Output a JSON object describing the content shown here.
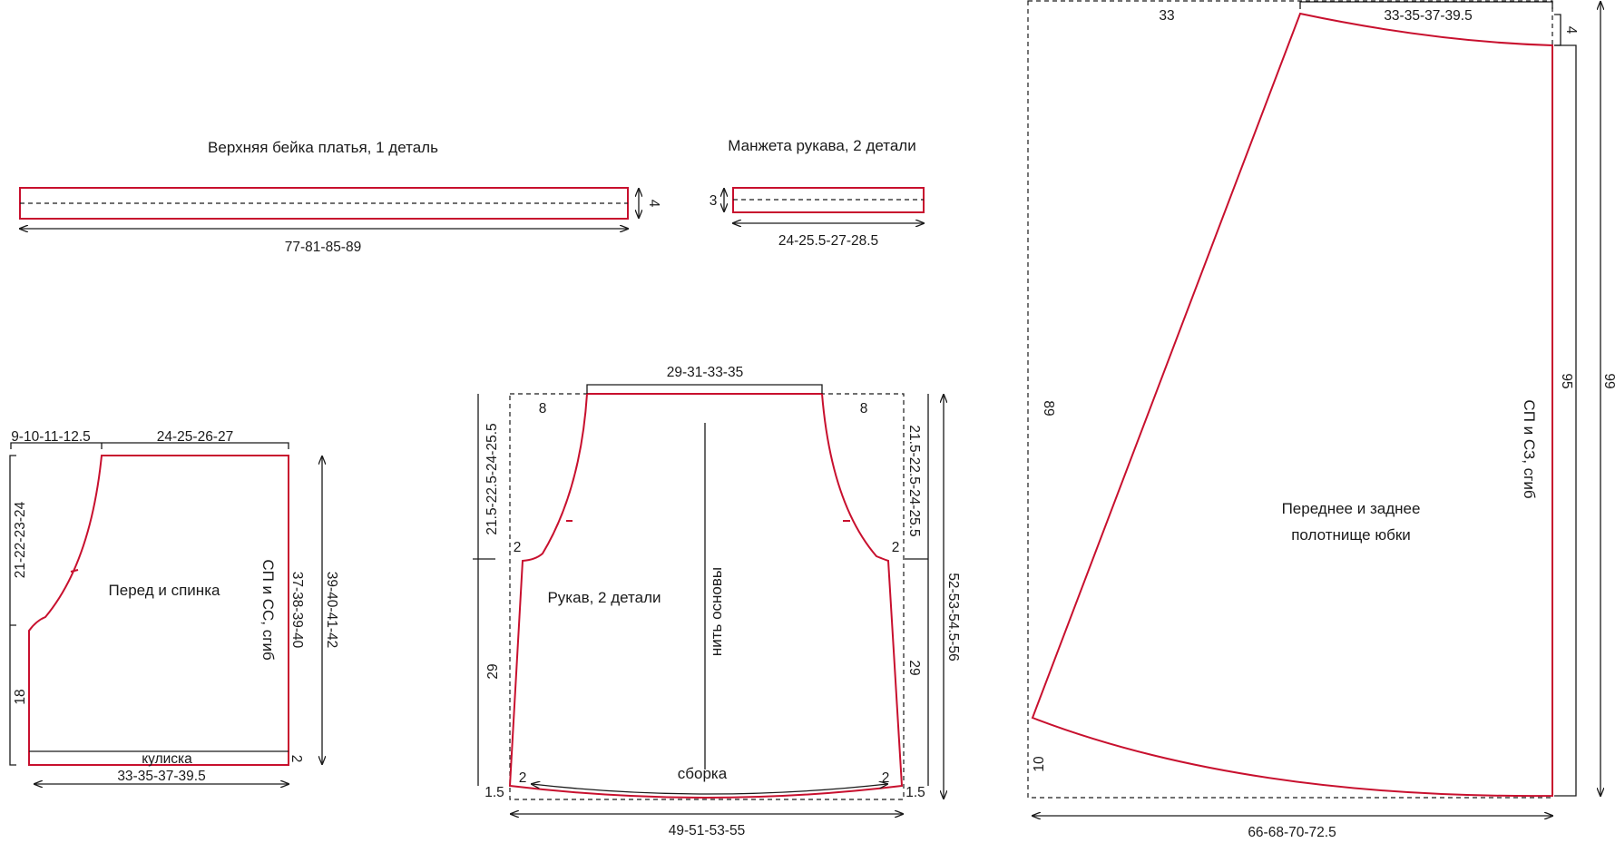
{
  "pieces": {
    "band": {
      "title": "Верхняя бейка платья, 1 деталь",
      "length": "77-81-85-89",
      "width": "4"
    },
    "cuff": {
      "title": "Манжета рукава, 2 детали",
      "length": "24-25.5-27-28.5",
      "width": "3"
    },
    "bodice": {
      "title": "Перед и спинка",
      "top_left": "9-10-11-12.5",
      "top_right": "24-25-26-27",
      "armhole_height": "21-22-23-24",
      "side_lower": "18",
      "fold": "СП и СС, сгиб",
      "fold_height": "37-38-39-40",
      "total_height": "39-40-41-42",
      "casing": "кулиска",
      "casing_width": "2",
      "bottom": "33-35-37-39.5"
    },
    "sleeve": {
      "title": "Рукав, 2 детали",
      "top": "29-31-33-35",
      "corner_left": "8",
      "corner_right": "8",
      "cap_left": "21.5-22.5-24-25.5",
      "cap_right": "21.5-22.5-24-25.5",
      "underarm_left": "2",
      "underarm_right": "2",
      "lower_left": "29",
      "lower_right": "29",
      "grain": "нить основы",
      "total_height": "52-53-54.5-56",
      "gather": "сборка",
      "hem_left": "2",
      "hem_right": "2",
      "corner_bottom_left": "1.5",
      "corner_bottom_right": "1.5",
      "bottom": "49-51-53-55"
    },
    "skirt": {
      "title_line1": "Переднее и заднее",
      "title_line2": "полотнище юбки",
      "top_left": "33",
      "top_right": "33-35-37-39.5",
      "top_drop": "4",
      "left_height": "89",
      "fold": "СП и СЗ, сгиб",
      "fold_height": "95",
      "total_height": "99",
      "hem_drop": "10",
      "bottom": "66-68-70-72.5"
    }
  },
  "colors": {
    "cut_line": "#c8102e",
    "ink": "#1a1a1a"
  }
}
